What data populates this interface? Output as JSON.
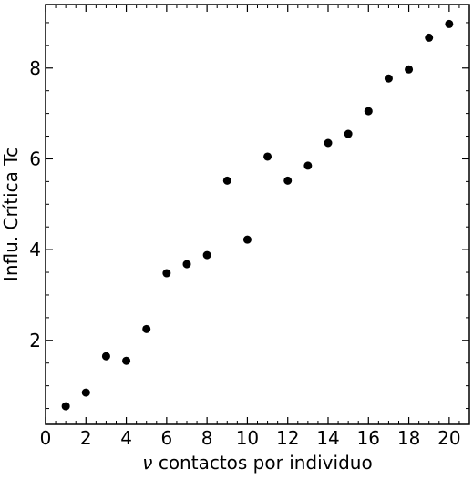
{
  "chart_data": {
    "type": "scatter",
    "xlabel_symbol": "ν",
    "xlabel_text": " contactos por individuo",
    "ylabel": "Influ. Crítica Tc",
    "xlim": [
      0,
      21
    ],
    "ylim": [
      0.15,
      9.4
    ],
    "xticks": [
      0,
      2,
      4,
      6,
      8,
      10,
      12,
      14,
      16,
      18,
      20
    ],
    "yticks": [
      2,
      4,
      6,
      8
    ],
    "grid": false,
    "marker_color": "#000000",
    "series": [
      {
        "x": [
          1,
          2,
          3,
          4,
          5,
          6,
          7,
          8,
          9,
          10,
          11,
          12,
          13,
          14,
          15,
          16,
          17,
          18,
          19,
          20
        ],
        "y": [
          0.55,
          0.85,
          1.65,
          1.55,
          2.25,
          3.48,
          3.68,
          3.88,
          5.52,
          4.22,
          6.05,
          5.52,
          5.85,
          6.35,
          6.55,
          7.05,
          7.77,
          7.97,
          8.67,
          8.97
        ]
      }
    ]
  }
}
